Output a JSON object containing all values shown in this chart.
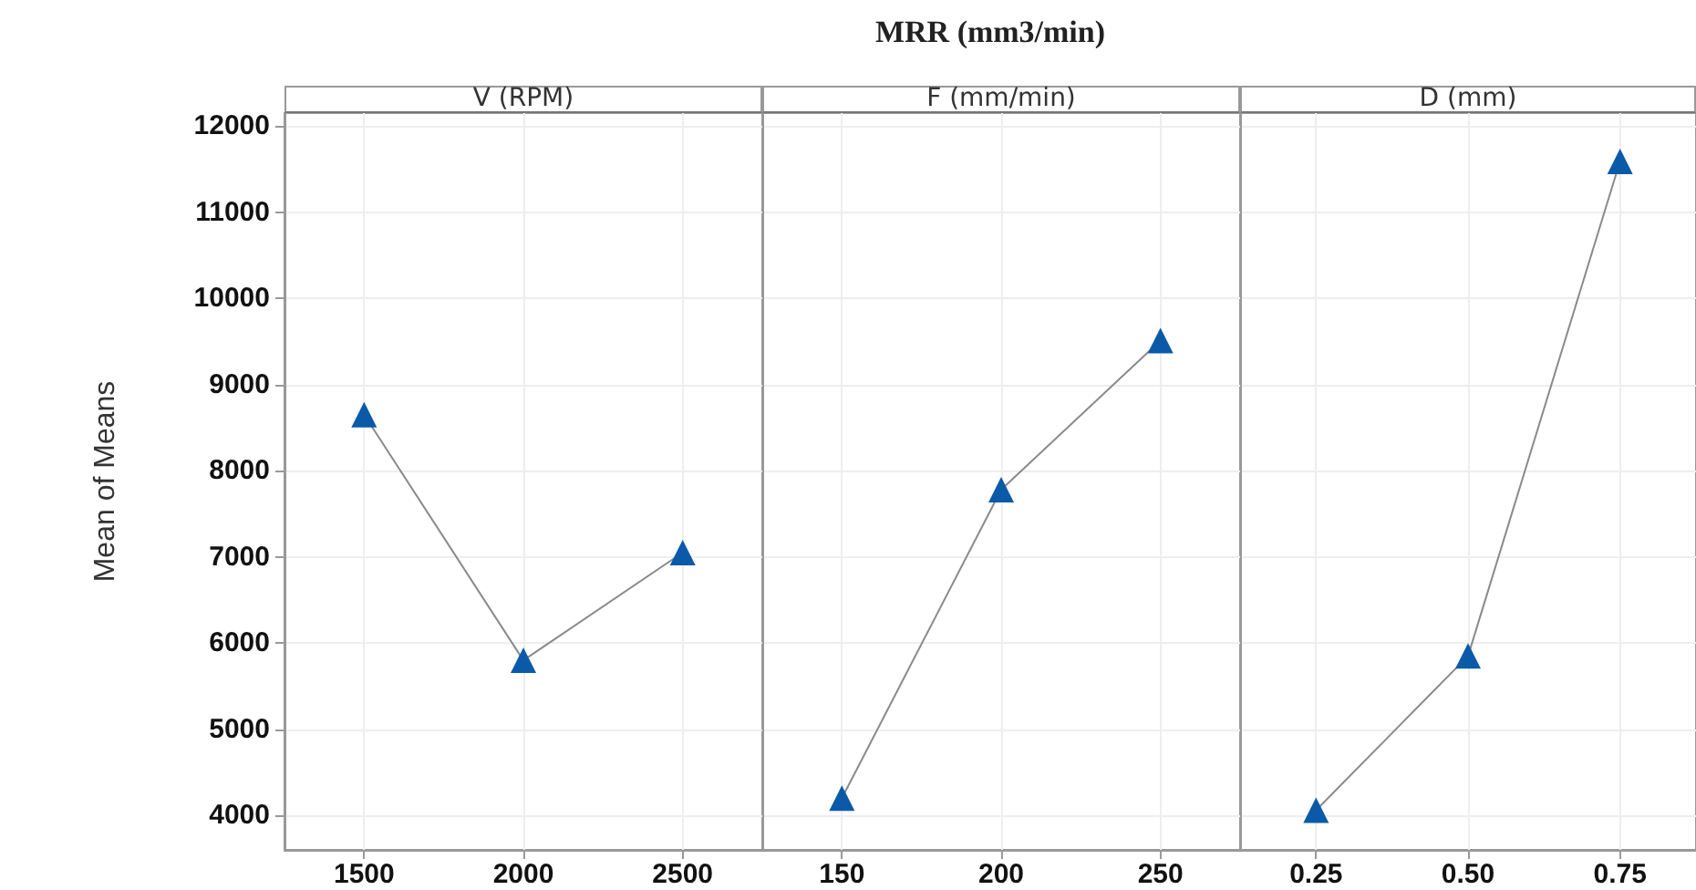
{
  "chart_data": [
    {
      "type": "line",
      "xlabel": "V (RPM)",
      "ylabel": "Mean of Means",
      "x": [
        1500,
        2000,
        2500
      ],
      "xlim": [
        1250,
        2750
      ],
      "xticks": [
        1500,
        2000,
        2500
      ],
      "ylim": [
        3600,
        12150
      ],
      "yticks": [
        4000,
        5000,
        6000,
        7000,
        8000,
        9000,
        10000,
        11000,
        12000
      ],
      "series": [
        {
          "color": "#0b5aa8",
          "values": [
            8650,
            5800,
            7050
          ]
        }
      ],
      "marker": "triangle",
      "grid": true
    },
    {
      "type": "line",
      "title": "MRR (mm3/min)",
      "xlabel": "F (mm/min)",
      "x": [
        150,
        200,
        250
      ],
      "xlim": [
        125,
        275
      ],
      "xticks": [
        150,
        200,
        250
      ],
      "ylim": [
        3600,
        12150
      ],
      "yticks": [
        4000,
        5000,
        6000,
        7000,
        8000,
        9000,
        10000,
        11000,
        12000
      ],
      "series": [
        {
          "color": "#0b5aa8",
          "values": [
            4200,
            7780,
            9510
          ]
        }
      ],
      "marker": "triangle",
      "grid": true,
      "tick_labels": "x"
    },
    {
      "type": "line",
      "xlabel": "D (mm)",
      "x": [
        0.25,
        0.5,
        0.75
      ],
      "xlim": [
        0.125,
        0.875
      ],
      "xticks": [
        {
          "value": 0.25,
          "label": "0.25"
        },
        {
          "value": 0.5,
          "label": "0.50"
        },
        {
          "value": 0.75,
          "label": "0.75"
        }
      ],
      "ylim": [
        3600,
        12150
      ],
      "yticks": [
        4000,
        5000,
        6000,
        7000,
        8000,
        9000,
        10000,
        11000,
        12000
      ],
      "series": [
        {
          "color": "#0b5aa8",
          "values": [
            4060,
            5850,
            11590
          ]
        }
      ],
      "marker": "triangle",
      "grid": true,
      "tick_labels": "x"
    }
  ]
}
